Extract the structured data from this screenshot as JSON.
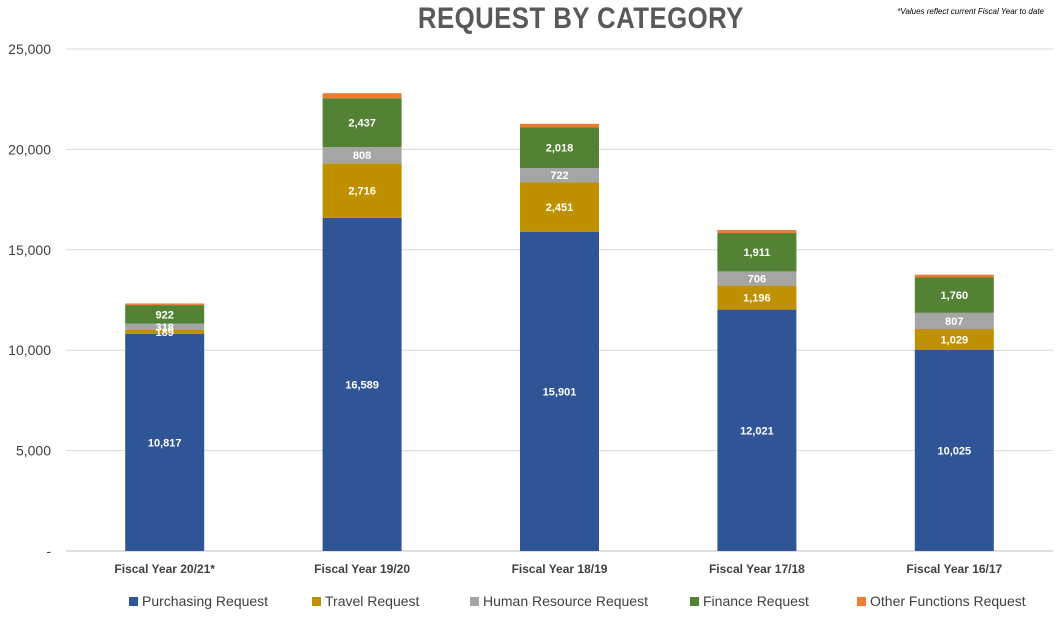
{
  "chart_data": {
    "type": "bar",
    "stacked": true,
    "title": "REQUEST BY CATEGORY",
    "annotations": [
      "*Values reflect current Fiscal Year to date"
    ],
    "categories": [
      "Fiscal Year 20/21*",
      "Fiscal Year 19/20",
      "Fiscal Year 18/19",
      "Fiscal Year 17/18",
      "Fiscal Year 16/17"
    ],
    "series": [
      {
        "name": "Purchasing Request",
        "color": "#2F5597",
        "values": [
          10817,
          16589,
          15901,
          12021,
          10025
        ],
        "labels": [
          "10,817",
          "16,589",
          "15,901",
          "12,021",
          "10,025"
        ]
      },
      {
        "name": "Travel Request",
        "color": "#BF9000",
        "values": [
          189,
          2716,
          2451,
          1196,
          1029
        ],
        "labels": [
          "189",
          "2,716",
          "2,451",
          "1,196",
          "1,029"
        ]
      },
      {
        "name": "Human Resource Request",
        "color": "#A5A5A5",
        "values": [
          318,
          808,
          722,
          706,
          807
        ],
        "labels": [
          "318",
          "808",
          "722",
          "706",
          "807"
        ]
      },
      {
        "name": "Finance Request",
        "color": "#548235",
        "values": [
          922,
          2437,
          2018,
          1911,
          1760
        ],
        "labels": [
          "922",
          "2,437",
          "2,018",
          "1,911",
          "1,760"
        ]
      },
      {
        "name": "Other Functions Request",
        "color": "#ED7D31",
        "values": [
          80,
          250,
          180,
          150,
          140
        ],
        "labels": [
          "",
          "",
          "",
          "",
          ""
        ]
      }
    ],
    "ylim": [
      0,
      25000
    ],
    "yticks": [
      0,
      5000,
      10000,
      15000,
      20000,
      25000
    ],
    "ytick_labels": [
      "-",
      "5,000",
      "10,000",
      "15,000",
      "20,000",
      "25,000"
    ],
    "grid": true,
    "legend_position": "bottom"
  }
}
